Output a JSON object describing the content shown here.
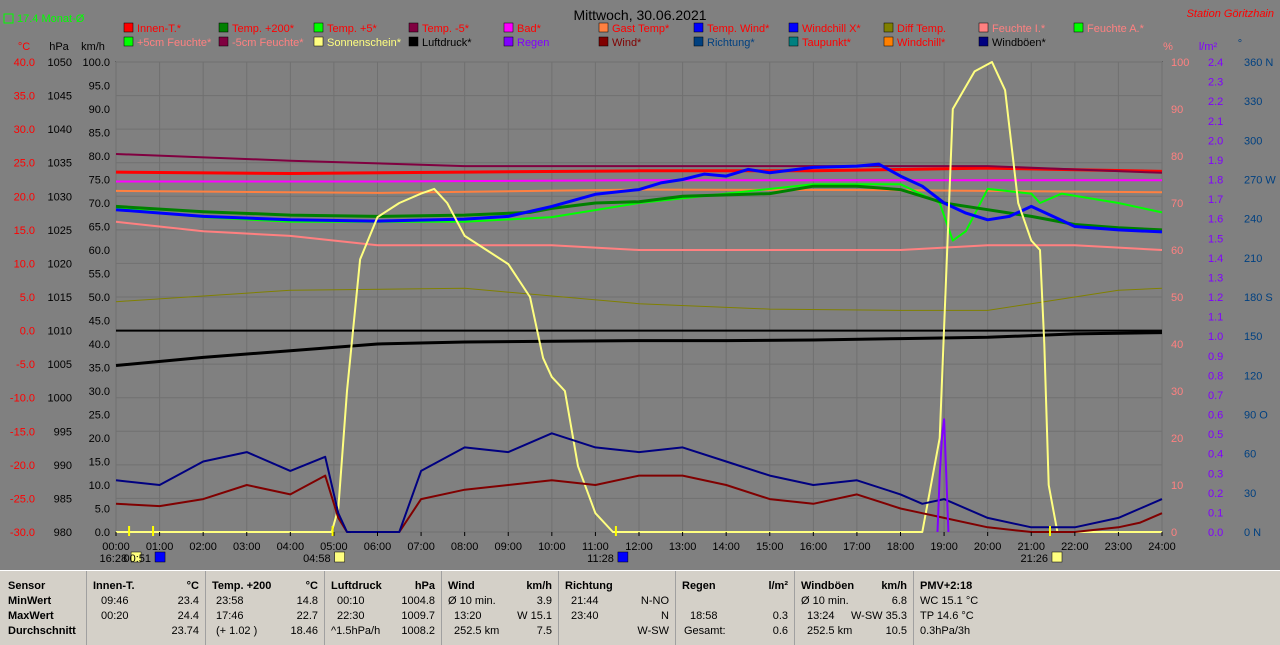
{
  "colors": {
    "innen": "#ff0000",
    "temp200": "#008000",
    "temp5": "#00ff00",
    "tempm5": "#800040",
    "bad": "#ff00ff",
    "gast": "#ff8040",
    "tempwind": "#0000ff",
    "windchillx": "#0000ff",
    "difftemp": "#808000",
    "feuchtei": "#ff8080",
    "feuchtea": "#00ff00",
    "f5cm": "#00ff00",
    "fm5cm": "#800040",
    "sonne": "#ffff80",
    "luftdruck": "#000000",
    "regen": "#8000ff",
    "wind": "#800000",
    "richtung": "#004080",
    "taupunkt": "#008080",
    "windchill": "#ff8000",
    "windboeen": "#000080"
  },
  "header": {
    "title": "Mittwoch, 30.06.2021",
    "station": "Station Göritzhain",
    "monat": "17.4 Monat-Ø"
  },
  "legend": [
    {
      "label": "Innen-T.*",
      "color": "#ff0000",
      "text": "#ff0000"
    },
    {
      "label": "Temp. +200*",
      "color": "#008000",
      "text": "#ff0000"
    },
    {
      "label": "Temp. +5*",
      "color": "#00ff00",
      "text": "#ff0000"
    },
    {
      "label": "Temp. -5*",
      "color": "#800040",
      "text": "#ff0000"
    },
    {
      "label": "Bad*",
      "color": "#ff00ff",
      "text": "#ff0000"
    },
    {
      "label": "Gast Temp*",
      "color": "#ff8040",
      "text": "#ff0000"
    },
    {
      "label": "Temp. Wind*",
      "color": "#0000ff",
      "text": "#ff0000"
    },
    {
      "label": "Windchill X*",
      "color": "#0000ff",
      "text": "#ff0000"
    },
    {
      "label": "Diff Temp.",
      "color": "#808000",
      "text": "#ff0000"
    },
    {
      "label": "Feuchte I.*",
      "color": "#ff8080",
      "text": "#ff8080"
    },
    {
      "label": "Feuchte A.*",
      "color": "#00ff00",
      "text": "#ff8080"
    },
    {
      "label": "+5cm Feuchte*",
      "color": "#00ff00",
      "text": "#ff8080"
    },
    {
      "label": "-5cm Feuchte*",
      "color": "#800040",
      "text": "#ff8080"
    },
    {
      "label": "Sonnenschein*",
      "color": "#ffff80",
      "text": "#ffff80"
    },
    {
      "label": "Luftdruck*",
      "color": "#000000",
      "text": "#000000"
    },
    {
      "label": "Regen",
      "color": "#8000ff",
      "text": "#8000ff"
    },
    {
      "label": "Wind*",
      "color": "#800000",
      "text": "#800000"
    },
    {
      "label": "Richtung*",
      "color": "#004080",
      "text": "#004080"
    },
    {
      "label": "Taupunkt*",
      "color": "#008080",
      "text": "#ff0000"
    },
    {
      "label": "Windchill*",
      "color": "#ff8000",
      "text": "#ff0000"
    },
    {
      "label": "Windböen*",
      "color": "#000080",
      "text": "#000000"
    }
  ],
  "chart_data": {
    "type": "line",
    "axis_units": {
      "temp": "°C",
      "pressure": "hPa",
      "wind": "km/h",
      "humidity": "%",
      "rain": "l/m²",
      "direction": "°"
    },
    "axes": {
      "temp": {
        "range": [
          -30,
          40
        ],
        "ticks": [
          "40.0",
          "35.0",
          "30.0",
          "25.0",
          "20.0",
          "15.0",
          "10.0",
          "5.0",
          "0.0",
          "-5.0",
          "-10.0",
          "-15.0",
          "-20.0",
          "-25.0",
          "-30.0"
        ]
      },
      "pressure": {
        "range": [
          980,
          1050
        ],
        "ticks": [
          "1050",
          "1045",
          "1040",
          "1035",
          "1030",
          "1025",
          "1020",
          "1015",
          "1010",
          "1005",
          "1000",
          "995",
          "990",
          "985",
          "980"
        ]
      },
      "wind": {
        "range": [
          0,
          100
        ],
        "ticks": [
          "100.0",
          "95.0",
          "90.0",
          "85.0",
          "80.0",
          "75.0",
          "70.0",
          "65.0",
          "60.0",
          "55.0",
          "50.0",
          "45.0",
          "40.0",
          "35.0",
          "30.0",
          "25.0",
          "20.0",
          "15.0",
          "10.0",
          "5.0",
          "0.0"
        ]
      },
      "humidity": {
        "range": [
          0,
          100
        ],
        "ticks": [
          "100",
          "90",
          "80",
          "70",
          "60",
          "50",
          "40",
          "30",
          "20",
          "10",
          "0"
        ]
      },
      "rain": {
        "range": [
          0,
          2.5
        ],
        "ticks": [
          "2.4",
          "2.3",
          "2.2",
          "2.1",
          "2.0",
          "1.9",
          "1.8",
          "1.7",
          "1.6",
          "1.5",
          "1.4",
          "1.3",
          "1.2",
          "1.1",
          "1.0",
          "0.9",
          "0.8",
          "0.7",
          "0.6",
          "0.5",
          "0.4",
          "0.3",
          "0.2",
          "0.1",
          "0.0"
        ]
      },
      "direction": {
        "range": [
          0,
          380
        ],
        "ticks": [
          "360 N",
          "330",
          "300",
          "270 W",
          "240",
          "210",
          "180 S",
          "150",
          "120",
          "90 O",
          "60",
          "30",
          "0 N"
        ]
      }
    },
    "x_ticks": [
      "00:00",
      "01:00",
      "02:00",
      "03:00",
      "04:00",
      "05:00",
      "06:00",
      "07:00",
      "08:00",
      "09:00",
      "10:00",
      "11:00",
      "12:00",
      "13:00",
      "14:00",
      "15:00",
      "16:00",
      "17:00",
      "18:00",
      "19:00",
      "20:00",
      "21:00",
      "22:00",
      "23:00",
      "24:00"
    ],
    "x_range": [
      0,
      24
    ],
    "markers": [
      {
        "label": "16:28",
        "x": 0.3,
        "kind": "sun"
      },
      {
        "label": "00:51",
        "x": 0.85,
        "kind": "moon"
      },
      {
        "label": "04:58",
        "x": 4.97,
        "kind": "sun"
      },
      {
        "label": "11:28",
        "x": 11.47,
        "kind": "moon"
      },
      {
        "label": "21:26",
        "x": 21.43,
        "kind": "sun"
      }
    ],
    "series": [
      {
        "name": "Innen-T.*",
        "key": "innen",
        "axis": "temp",
        "width": 3,
        "x": [
          0,
          4,
          8,
          12,
          16,
          20,
          24
        ],
        "y": [
          23.6,
          23.4,
          23.6,
          23.8,
          23.8,
          24.2,
          23.7
        ]
      },
      {
        "name": "Bad*",
        "key": "bad",
        "axis": "temp",
        "width": 2,
        "x": [
          0,
          6,
          12,
          18,
          24
        ],
        "y": [
          22.2,
          22.2,
          22.4,
          22.4,
          22.4
        ]
      },
      {
        "name": "Temp. -5*",
        "key": "tempm5",
        "axis": "temp",
        "width": 2,
        "x": [
          0,
          4,
          8,
          12,
          16,
          20,
          24
        ],
        "y": [
          26.3,
          25.3,
          24.5,
          24.5,
          24.5,
          24.5,
          23.5
        ]
      },
      {
        "name": "Gast Temp*",
        "key": "gast",
        "axis": "temp",
        "width": 2,
        "x": [
          0,
          6,
          12,
          18,
          24
        ],
        "y": [
          20.8,
          20.5,
          21.0,
          20.9,
          20.6
        ]
      },
      {
        "name": "Feuchte I.*",
        "key": "feuchtei",
        "axis": "humidity",
        "width": 2,
        "x": [
          0,
          2,
          4,
          6,
          8,
          10,
          12,
          14,
          16,
          18,
          20,
          22,
          24
        ],
        "y": [
          66,
          64,
          63,
          61,
          61,
          61,
          60,
          60,
          60,
          60,
          61,
          61,
          60
        ]
      },
      {
        "name": "Feuchte A.*",
        "key": "feuchtea",
        "axis": "humidity",
        "width": 2,
        "x": [
          0,
          2,
          4,
          6,
          8,
          10,
          12,
          14,
          16,
          18,
          18.9,
          19.2,
          19.5,
          20,
          21,
          21.2,
          21.7,
          23,
          24
        ],
        "y": [
          69,
          67,
          66,
          66,
          66,
          67,
          70,
          72,
          74,
          74,
          70,
          62,
          64,
          73,
          72,
          70,
          72,
          70,
          68
        ]
      },
      {
        "name": "Temp. +200*",
        "key": "temp200",
        "axis": "temp",
        "width": 3,
        "x": [
          0,
          2,
          4,
          6,
          8,
          9.5,
          10,
          11,
          12,
          13,
          14,
          15,
          16,
          17,
          18,
          18.5,
          19,
          20,
          21,
          22,
          23,
          24
        ],
        "y": [
          18.5,
          17.7,
          17.2,
          17.0,
          17.2,
          17.6,
          18.2,
          19.0,
          19.2,
          20.0,
          20.2,
          20.4,
          21.5,
          21.5,
          21.0,
          20.0,
          19.0,
          18.0,
          17.0,
          15.8,
          15.3,
          15.0
        ]
      },
      {
        "name": "Temp. Wind*",
        "key": "tempwind",
        "axis": "temp",
        "width": 3,
        "x": [
          0,
          2,
          4,
          6,
          8,
          9,
          10,
          11,
          12,
          12.5,
          13,
          13.5,
          14,
          14.5,
          15,
          16,
          17,
          17.5,
          18,
          18.5,
          19,
          19.5,
          20,
          20.5,
          21,
          21.5,
          22,
          23,
          24
        ],
        "y": [
          18.0,
          17.0,
          16.5,
          16.3,
          16.6,
          17.0,
          18.5,
          20.3,
          21.0,
          22.0,
          22.5,
          23.3,
          23.0,
          24.0,
          23.5,
          24.3,
          24.5,
          24.8,
          23.0,
          21.5,
          19.0,
          17.5,
          16.5,
          17.0,
          18.5,
          17.0,
          15.5,
          15.0,
          14.7
        ]
      },
      {
        "name": "Difftemp",
        "key": "difftemp",
        "axis": "temp",
        "width": 1,
        "x": [
          0,
          4,
          8,
          12,
          15,
          18,
          20,
          21,
          22,
          23,
          24
        ],
        "y": [
          4.3,
          6.0,
          6.3,
          4.0,
          3.2,
          3.0,
          3.0,
          4.0,
          5.0,
          6.0,
          6.3
        ]
      },
      {
        "name": "Luftdruck*",
        "key": "luftdruck",
        "axis": "pressure",
        "width": 3,
        "x": [
          0,
          2,
          4,
          6,
          8,
          10,
          12,
          14,
          16,
          18,
          20,
          22,
          24
        ],
        "y": [
          1004.8,
          1006.0,
          1007.0,
          1008.0,
          1008.3,
          1008.4,
          1008.5,
          1008.5,
          1008.6,
          1008.8,
          1009.0,
          1009.5,
          1009.7
        ]
      },
      {
        "name": "Luftdruck-Ref",
        "key": "luftdruck",
        "axis": "pressure",
        "width": 2,
        "x": [
          0,
          24
        ],
        "y": [
          1010.0,
          1010.0
        ]
      },
      {
        "name": "Sonnenschein*",
        "key": "sonne",
        "axis": "humidity",
        "width": 2,
        "x": [
          0,
          4.95,
          5.1,
          5.3,
          5.6,
          6.0,
          6.5,
          7.0,
          7.3,
          7.6,
          8.0,
          8.5,
          9.0,
          9.5,
          9.8,
          10.0,
          10.3,
          10.6,
          11.0,
          11.4,
          13.5,
          18.5,
          18.9,
          19.2,
          19.7,
          20.1,
          20.4,
          20.7,
          21.0,
          21.2,
          21.3,
          21.4,
          21.6,
          24
        ],
        "y": [
          0,
          0,
          5,
          30,
          58,
          67,
          70,
          72,
          73,
          70,
          63,
          60,
          57,
          50,
          37,
          33,
          30,
          14,
          4,
          0,
          0,
          0,
          20,
          90,
          98,
          100,
          94,
          70,
          62,
          60,
          40,
          10,
          0,
          0
        ]
      },
      {
        "name": "Wind*",
        "key": "wind",
        "axis": "wind",
        "width": 2,
        "x": [
          0,
          1,
          2,
          3,
          4,
          4.8,
          5.1,
          5.3,
          6.5,
          7,
          8,
          9,
          10,
          11,
          12,
          13,
          14,
          15,
          16,
          17,
          18,
          18.5,
          19,
          20,
          21,
          22,
          23,
          23.5,
          24
        ],
        "y": [
          6,
          5.5,
          7,
          10,
          8,
          12,
          3,
          0,
          0,
          7,
          9,
          10,
          11,
          10,
          12,
          12,
          10,
          7,
          6,
          8,
          5,
          4,
          3,
          1,
          0,
          0,
          1,
          2,
          4
        ]
      },
      {
        "name": "Windböen*",
        "key": "windboeen",
        "axis": "wind",
        "width": 2,
        "x": [
          0,
          1,
          2,
          3,
          4,
          4.8,
          5.1,
          5.3,
          6.5,
          7,
          8,
          9,
          10,
          11,
          12,
          13,
          14,
          15,
          16,
          17,
          18,
          18.5,
          19,
          20,
          21,
          22,
          23,
          23.5,
          24
        ],
        "y": [
          11,
          10,
          15,
          17,
          13,
          16,
          4,
          0,
          0,
          13,
          18,
          17,
          21,
          18,
          17,
          18,
          15,
          12,
          10,
          11,
          8,
          6,
          7,
          3,
          1,
          1,
          3,
          5,
          7
        ]
      },
      {
        "name": "Regen",
        "key": "regen",
        "axis": "rain",
        "width": 2,
        "x": [
          18.85,
          18.9,
          18.95,
          19.0,
          19.05,
          19.1
        ],
        "y": [
          0,
          0.3,
          0.5,
          0.6,
          0.3,
          0
        ]
      }
    ]
  },
  "stats": {
    "sensor": {
      "title": "Sensor",
      "rows": [
        "MinWert",
        "MaxWert",
        "Durchschnitt"
      ]
    },
    "innen": {
      "title": "Innen-T.",
      "unit": "°C",
      "min_time": "09:46",
      "min_val": "23.4",
      "max_time": "00:20",
      "max_val": "24.4",
      "avg": "23.74"
    },
    "temp200": {
      "title": "Temp. +200",
      "unit": "°C",
      "min_time": "23:58",
      "min_val": "14.8",
      "max_time": "17:46",
      "max_val": "22.7",
      "diff": "(+ 1.02 )",
      "avg": "18.46"
    },
    "luftdruck": {
      "title": "Luftdruck",
      "unit": "hPa",
      "min_time": "00:10",
      "min_val": "1004.8",
      "max_time": "22:30",
      "max_val": "1009.7",
      "trend": "^1.5hPa/h",
      "avg": "1008.2"
    },
    "wind": {
      "title": "Wind",
      "unit": "km/h",
      "r1_label": "Ø 10 min.",
      "r1_val": "3.9",
      "r2_time": "13:20",
      "r2_val": "W 15.1",
      "r3_label": "252.5 km",
      "r3_val": "7.5"
    },
    "richtung": {
      "title": "Richtung",
      "r1_time": "21:44",
      "r1_val": "N-NO",
      "r2_time": "23:40",
      "r2_val": "N",
      "r3_val": "W-SW"
    },
    "regen": {
      "title": "Regen",
      "unit": "l/m²",
      "r2_time": "18:58",
      "r2_val": "0.3",
      "r3_label": "Gesamt:",
      "r3_val": "0.6"
    },
    "boeen": {
      "title": "Windböen",
      "unit": "km/h",
      "r1_label": "Ø 10 min.",
      "r1_val": "6.8",
      "r2_time": "13:24",
      "r2_val": "W-SW 35.3",
      "r3_label": "252.5 km",
      "r3_val": "10.5"
    },
    "pmv": {
      "title": "PMV+2:18",
      "r1": "WC 15.1 °C",
      "r2": "TP 14.6 °C",
      "r3": "0.3hPa/3h"
    }
  }
}
